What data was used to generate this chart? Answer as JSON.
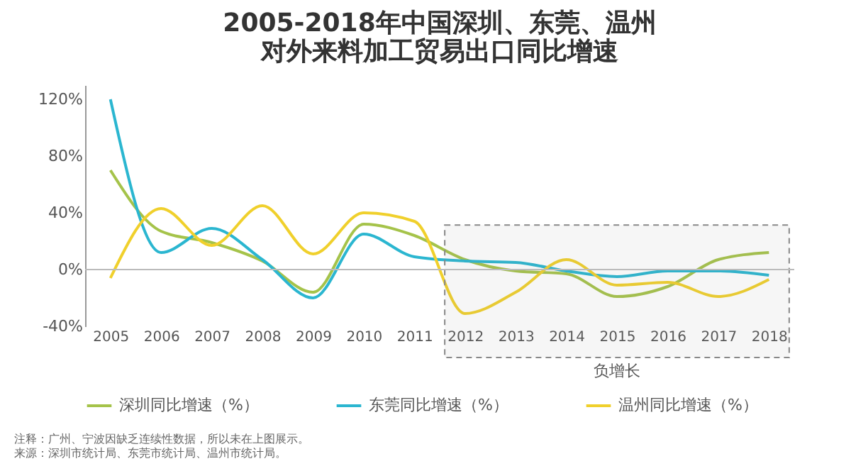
{
  "chart_data": {
    "type": "line",
    "title": "2005-2018年中国深圳、东莞、温州对外来料加工贸易出口同比增速",
    "categories": [
      "2005",
      "2006",
      "2007",
      "2008",
      "2009",
      "2010",
      "2011",
      "2012",
      "2013",
      "2014",
      "2015",
      "2016",
      "2017",
      "2018"
    ],
    "series": [
      {
        "name": "深圳同比增速（%）",
        "color": "#a5c34a",
        "values": [
          70,
          27,
          19,
          6,
          -16,
          32,
          24,
          7,
          -1,
          -3,
          -19,
          -12,
          7,
          12
        ]
      },
      {
        "name": "东莞同比增速（%）",
        "color": "#2bb6d0",
        "values": [
          120,
          12,
          29,
          7,
          -20,
          25,
          9,
          6,
          5,
          -1,
          -5,
          -1,
          -1,
          -4
        ]
      },
      {
        "name": "温州同比增速（%）",
        "color": "#f0d02c",
        "values": [
          -6,
          43,
          17,
          45,
          11,
          40,
          34,
          -31,
          -16,
          7,
          -11,
          -9,
          -19,
          -7
        ]
      }
    ],
    "ylim": [
      -40,
      130
    ],
    "yticks": [
      {
        "value": -40,
        "label": "-40%"
      },
      {
        "value": 0,
        "label": "0%"
      },
      {
        "value": 40,
        "label": "40%"
      },
      {
        "value": 80,
        "label": "80%"
      },
      {
        "value": 120,
        "label": "120%"
      }
    ],
    "bands": [
      {
        "axis": "x",
        "from": "2012",
        "to": "2018",
        "label": "负增长",
        "color": "#888888"
      }
    ],
    "ref_lines": [
      {
        "axis": "y",
        "value": 0,
        "color": "#bbbbbb"
      }
    ],
    "grid": false,
    "legend": "bottom",
    "marker": "none",
    "line_style": "solid",
    "annotations": [
      "注释：广州、宁波因缺乏连续性数据，所以未在上图展示。",
      "来源：深圳市统计局、东莞市统计局、温州市统计局。"
    ]
  }
}
